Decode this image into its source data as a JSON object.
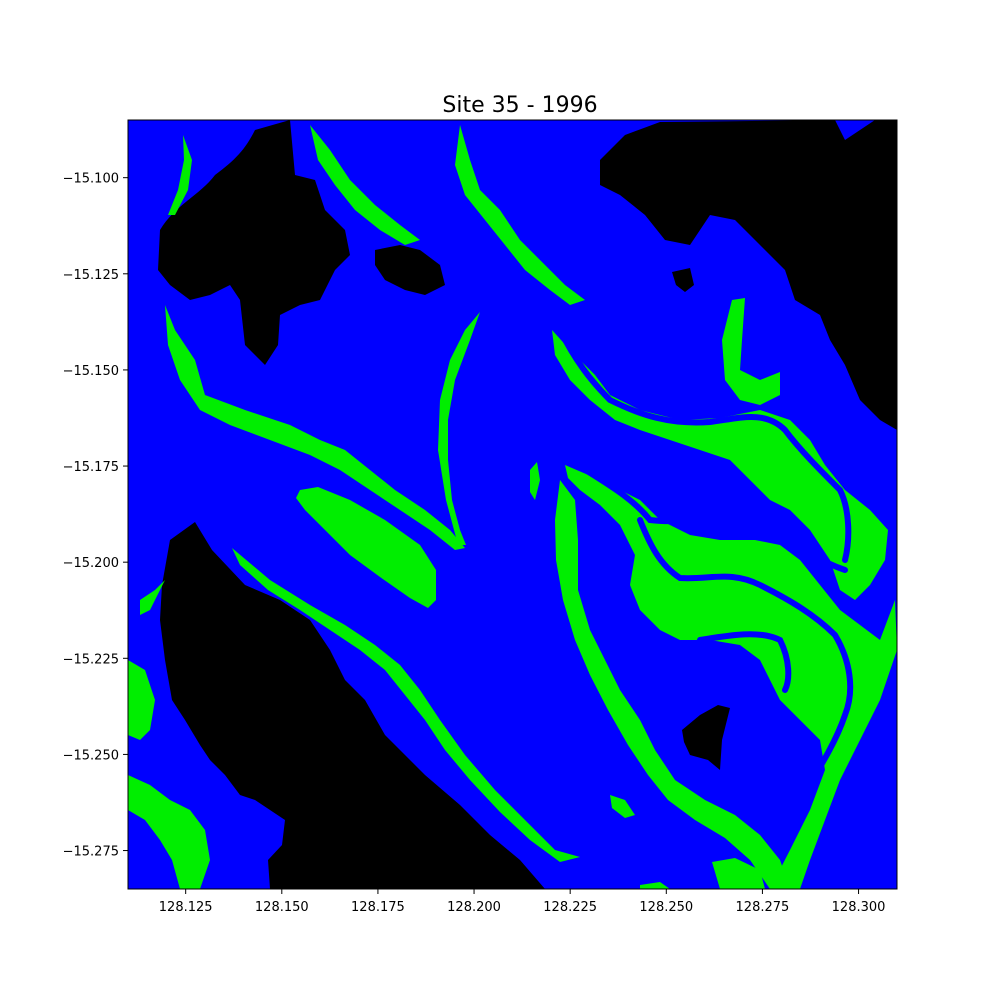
{
  "figure": {
    "title": "Site 35 - 1996"
  },
  "map": {
    "type": "classified-raster",
    "x_range": [
      128.11,
      128.31
    ],
    "y_range": [
      -15.285,
      -15.085
    ],
    "x_ticks": [
      128.125,
      128.15,
      128.175,
      128.2,
      128.225,
      128.25,
      128.275,
      128.3
    ],
    "x_tick_labels": [
      "128.125",
      "128.150",
      "128.175",
      "128.200",
      "128.225",
      "128.250",
      "128.275",
      "128.300"
    ],
    "y_ticks": [
      -15.1,
      -15.125,
      -15.15,
      -15.175,
      -15.2,
      -15.225,
      -15.25,
      -15.275
    ],
    "y_tick_labels": [
      "−15.100",
      "−15.125",
      "−15.150",
      "−15.175",
      "−15.200",
      "−15.225",
      "−15.250",
      "−15.275"
    ],
    "colors": {
      "water": "#0000ff",
      "vegetation": "#00ee00",
      "land": "#000000"
    }
  }
}
